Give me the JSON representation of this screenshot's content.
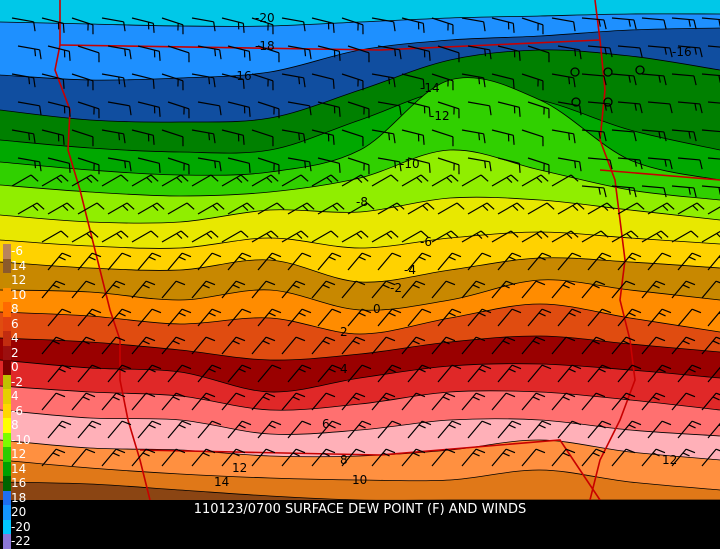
{
  "caption": "110123/0700 SURFACE DEW POINT (F) AND WINDS",
  "legend": [
    {
      "label": "-6",
      "color": "#b9845c"
    },
    {
      "label": "14",
      "color": "#8b5a2b"
    },
    {
      "label": "12",
      "color": "#c68a00"
    },
    {
      "label": "10",
      "color": "#ff8c00"
    },
    {
      "label": "8",
      "color": "#ff6a00"
    },
    {
      "label": "6",
      "color": "#e04010"
    },
    {
      "label": "4",
      "color": "#c22c10"
    },
    {
      "label": "2",
      "color": "#9c0f0f"
    },
    {
      "label": "0",
      "color": "#7a0000"
    },
    {
      "label": "-2",
      "color": "#c0c000"
    },
    {
      "label": "4",
      "color": "#e6d000"
    },
    {
      "label": "-6",
      "color": "#ffd700"
    },
    {
      "label": "8",
      "color": "#ffff00"
    },
    {
      "label": "-10",
      "color": "#7cfc00"
    },
    {
      "label": "12",
      "color": "#2ecc00"
    },
    {
      "label": "14",
      "color": "#00a000"
    },
    {
      "label": "16",
      "color": "#006400"
    },
    {
      "label": "18",
      "color": "#1e6ff0"
    },
    {
      "label": "20",
      "color": "#1496ff"
    },
    {
      "label": "-20",
      "color": "#00c8ff"
    },
    {
      "label": "-22",
      "color": "#8c78d8"
    }
  ],
  "bands": [
    {
      "level": "<-20",
      "color": "#00c8e8"
    },
    {
      "level": "-20 to -18",
      "color": "#1e90ff"
    },
    {
      "level": "-18 to -16",
      "color": "#104ea0"
    },
    {
      "level": "-16 to -14",
      "color": "#008000"
    },
    {
      "level": "-14 to -12",
      "color": "#00a800"
    },
    {
      "level": "-12 to -10",
      "color": "#30d000"
    },
    {
      "level": "-10 to -8",
      "color": "#90ee00"
    },
    {
      "level": "-8 to -6",
      "color": "#e8e800"
    },
    {
      "level": "-6 to -4",
      "color": "#ffd200"
    },
    {
      "level": "-4 to -2",
      "color": "#c88800"
    },
    {
      "level": "-2 to 0",
      "color": "#ff8c00"
    },
    {
      "level": "0 to 2",
      "color": "#e04c10"
    },
    {
      "level": "2 to 4",
      "color": "#9a0000"
    },
    {
      "level": "4 to 6",
      "color": "#e02828"
    },
    {
      "level": "6 to 8",
      "color": "#ff7070"
    },
    {
      "level": "8 to 10",
      "color": "#ffb0b8"
    },
    {
      "level": "10 to 12",
      "color": "#ff9040"
    },
    {
      "level": "12 to 14",
      "color": "#e07818"
    },
    {
      "level": ">14",
      "color": "#8b4513"
    }
  ],
  "contour_labels": [
    "-20",
    "-18",
    "-16",
    "-14",
    "-12",
    "-10",
    "-8",
    "-6",
    "-4",
    "-2",
    "0",
    "2",
    "4",
    "6",
    "8",
    "10",
    "12",
    "14",
    "12",
    "-16"
  ],
  "wind_barb_color": "#000000",
  "border_color": "#c80000"
}
